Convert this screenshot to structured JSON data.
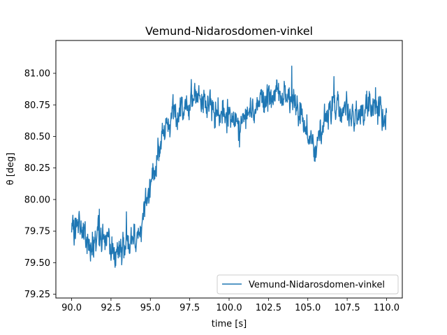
{
  "chart_data": {
    "type": "line",
    "title": "Vemund-Nidarosdomen-vinkel",
    "xlabel": "time [s]",
    "ylabel": "θ [deg]",
    "xlim": [
      89.0,
      111.0
    ],
    "ylim": [
      79.22,
      81.26
    ],
    "x_ticks": [
      90.0,
      92.5,
      95.0,
      97.5,
      100.0,
      102.5,
      105.0,
      107.5,
      110.0
    ],
    "x_tick_labels": [
      "90.0",
      "92.5",
      "95.0",
      "97.5",
      "100.0",
      "102.5",
      "105.0",
      "107.5",
      "110.0"
    ],
    "y_ticks": [
      79.25,
      79.5,
      79.75,
      80.0,
      80.25,
      80.5,
      80.75,
      81.0
    ],
    "y_tick_labels": [
      "79.25",
      "79.50",
      "79.75",
      "80.00",
      "80.25",
      "80.50",
      "80.75",
      "81.00"
    ],
    "grid": false,
    "legend_position": "lower-right",
    "line_color": "#1f77b4",
    "series": [
      {
        "name": "Vemund-Nidarosdomen-vinkel",
        "x": [
          90.0,
          90.5,
          91.0,
          91.5,
          92.0,
          92.5,
          93.0,
          93.5,
          94.0,
          94.5,
          95.0,
          95.5,
          96.0,
          96.5,
          97.0,
          97.5,
          98.0,
          98.5,
          99.0,
          99.5,
          100.0,
          100.5,
          101.0,
          101.5,
          102.0,
          102.5,
          103.0,
          103.5,
          104.0,
          104.5,
          105.0,
          105.5,
          106.0,
          106.5,
          107.0,
          107.5,
          108.0,
          108.5,
          109.0,
          109.5,
          110.0
        ],
        "y": [
          79.72,
          79.8,
          79.64,
          79.7,
          79.72,
          79.62,
          79.6,
          79.66,
          79.7,
          79.8,
          80.1,
          80.35,
          80.6,
          80.68,
          80.72,
          80.76,
          80.78,
          80.74,
          80.72,
          80.7,
          80.66,
          80.62,
          80.64,
          80.72,
          80.76,
          80.82,
          80.86,
          80.84,
          80.8,
          80.66,
          80.55,
          80.4,
          80.62,
          80.72,
          80.72,
          80.7,
          80.62,
          80.68,
          80.78,
          80.72,
          80.62
        ]
      }
    ]
  }
}
